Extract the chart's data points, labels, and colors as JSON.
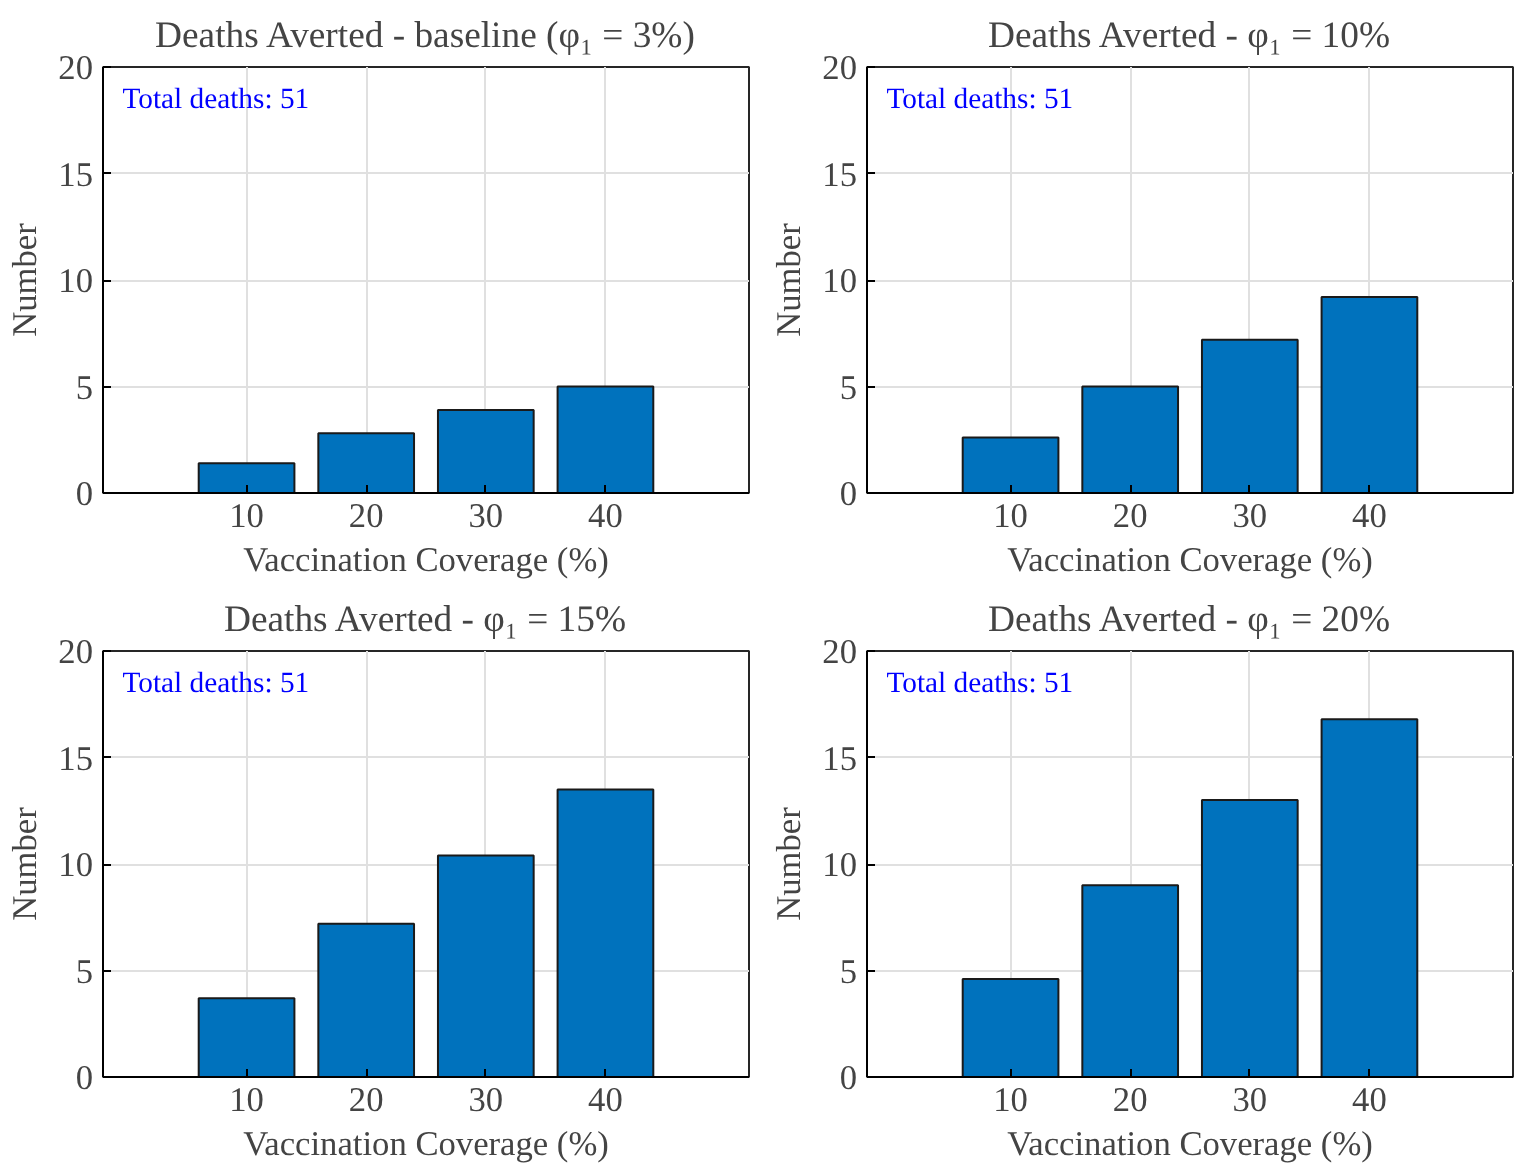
{
  "chart_data": [
    {
      "type": "bar",
      "title": "Deaths Averted - baseline (φ₁ = 3%)",
      "xlabel": "Vaccination Coverage (%)",
      "ylabel": "Number",
      "x": [
        10,
        20,
        30,
        40
      ],
      "values": [
        1.4,
        2.8,
        3.9,
        5.0
      ],
      "color": "#0072bd",
      "xlim": [
        -2,
        52
      ],
      "xticks": [
        10,
        20,
        30,
        40
      ],
      "ylim": [
        0,
        20
      ],
      "yticks": [
        0,
        5,
        10,
        15,
        20
      ],
      "grid": true,
      "annotations": [
        "Total deaths: 51"
      ]
    },
    {
      "type": "bar",
      "title": "Deaths Averted - φ₁ = 10%",
      "xlabel": "Vaccination Coverage (%)",
      "ylabel": "Number",
      "x": [
        10,
        20,
        30,
        40
      ],
      "values": [
        2.6,
        5.0,
        7.2,
        9.2
      ],
      "color": "#0072bd",
      "xlim": [
        -2,
        52
      ],
      "xticks": [
        10,
        20,
        30,
        40
      ],
      "ylim": [
        0,
        20
      ],
      "yticks": [
        0,
        5,
        10,
        15,
        20
      ],
      "grid": true,
      "annotations": [
        "Total deaths: 51"
      ]
    },
    {
      "type": "bar",
      "title": "Deaths Averted - φ₁ = 15%",
      "xlabel": "Vaccination Coverage (%)",
      "ylabel": "Number",
      "x": [
        10,
        20,
        30,
        40
      ],
      "values": [
        3.7,
        7.2,
        10.4,
        13.5
      ],
      "color": "#0072bd",
      "xlim": [
        -2,
        52
      ],
      "xticks": [
        10,
        20,
        30,
        40
      ],
      "ylim": [
        0,
        20
      ],
      "yticks": [
        0,
        5,
        10,
        15,
        20
      ],
      "grid": true,
      "annotations": [
        "Total deaths: 51"
      ]
    },
    {
      "type": "bar",
      "title": "Deaths Averted - φ₁ = 20%",
      "xlabel": "Vaccination Coverage (%)",
      "ylabel": "Number",
      "x": [
        10,
        20,
        30,
        40
      ],
      "values": [
        4.6,
        9.0,
        13.0,
        16.8
      ],
      "color": "#0072bd",
      "xlim": [
        -2,
        52
      ],
      "xticks": [
        10,
        20,
        30,
        40
      ],
      "ylim": [
        0,
        20
      ],
      "yticks": [
        0,
        5,
        10,
        15,
        20
      ],
      "grid": true,
      "annotations": [
        "Total deaths: 51"
      ]
    }
  ]
}
